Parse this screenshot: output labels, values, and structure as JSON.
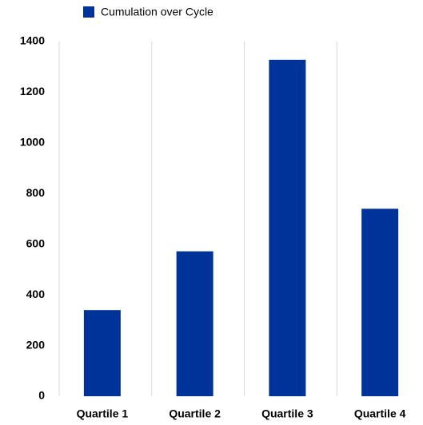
{
  "chart_data": {
    "type": "bar",
    "categories": [
      "Quartile 1",
      "Quartile 2",
      "Quartile 3",
      "Quartile 4"
    ],
    "series": [
      {
        "name": "Cumulation over Cycle",
        "color": "#003399",
        "values": [
          340,
          572,
          1328,
          740
        ]
      }
    ],
    "ylim": [
      0,
      1400
    ],
    "yticks": [
      0,
      200,
      400,
      600,
      800,
      1000,
      1200,
      1400
    ],
    "category_grid": true
  }
}
